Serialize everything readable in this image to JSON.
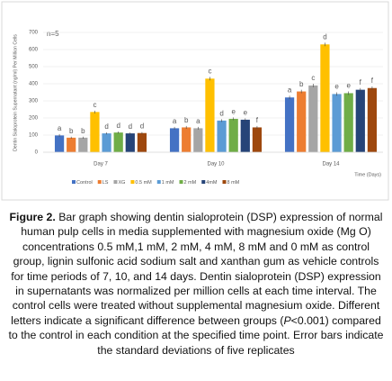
{
  "chart_data": {
    "type": "bar",
    "ylabel": "Dentin Sialoprotein Supernatant (ng/ml) Per Million Cells",
    "xlabel": "Time (Days)",
    "annotation": "n=5",
    "categories": [
      "Day 7",
      "Day 10",
      "Day 14"
    ],
    "ylim": [
      0,
      700
    ],
    "yticks": [
      0,
      100,
      200,
      300,
      400,
      500,
      600,
      700
    ],
    "grid": true,
    "series": [
      {
        "name": "Control",
        "color": "#4472c4",
        "values": [
          98,
          140,
          320
        ],
        "errors": [
          8,
          8,
          10
        ],
        "letters": [
          "a",
          "a",
          "a"
        ]
      },
      {
        "name": "LS",
        "color": "#ed7d31",
        "values": [
          85,
          145,
          355
        ],
        "errors": [
          6,
          8,
          10
        ],
        "letters": [
          "b",
          "b",
          "b"
        ]
      },
      {
        "name": "XG",
        "color": "#a5a5a5",
        "values": [
          85,
          140,
          390
        ],
        "errors": [
          6,
          8,
          10
        ],
        "letters": [
          "b",
          "a",
          "c"
        ]
      },
      {
        "name": "0.5 mM",
        "color": "#ffc000",
        "values": [
          235,
          430,
          630
        ],
        "errors": [
          8,
          10,
          10
        ],
        "letters": [
          "c",
          "c",
          "d"
        ]
      },
      {
        "name": "1 mM",
        "color": "#5b9bd5",
        "values": [
          110,
          185,
          340
        ],
        "errors": [
          6,
          8,
          10
        ],
        "letters": [
          "d",
          "d",
          "e"
        ]
      },
      {
        "name": "2 mM",
        "color": "#70ad47",
        "values": [
          115,
          195,
          345
        ],
        "errors": [
          6,
          8,
          10
        ],
        "letters": [
          "d",
          "e",
          "e"
        ]
      },
      {
        "name": "4mM",
        "color": "#264478",
        "values": [
          110,
          190,
          365
        ],
        "errors": [
          6,
          8,
          10
        ],
        "letters": [
          "d",
          "e",
          "f"
        ]
      },
      {
        "name": "8 mM",
        "color": "#9e480e",
        "values": [
          112,
          145,
          375
        ],
        "errors": [
          6,
          8,
          10
        ],
        "letters": [
          "d",
          "f",
          "f"
        ]
      }
    ]
  },
  "caption": {
    "label": "Figure 2.",
    "parts": [
      " Bar graph showing dentin sialoprotein (DSP) expression of normal human pulp cells in media supplemented with magnesium oxide (Mg O) concentrations 0.5 mM,1 mM, 2 mM, 4 mM, 8 mM and 0 mM as control group, lignin sulfonic acid sodium salt and xanthan gum as vehicle controls for time periods of 7, 10, and 14 days. Dentin sialoprotein (DSP) expression in supernatants was normalized per million cells at each time interval. The control cells were treated without supplemental magnesium oxide. Different letters indicate a significant difference between groups (",
      "P",
      "<0.001) compared to the control in each condition at the specified time point. Error bars indicate the standard deviations of five replicates"
    ]
  }
}
